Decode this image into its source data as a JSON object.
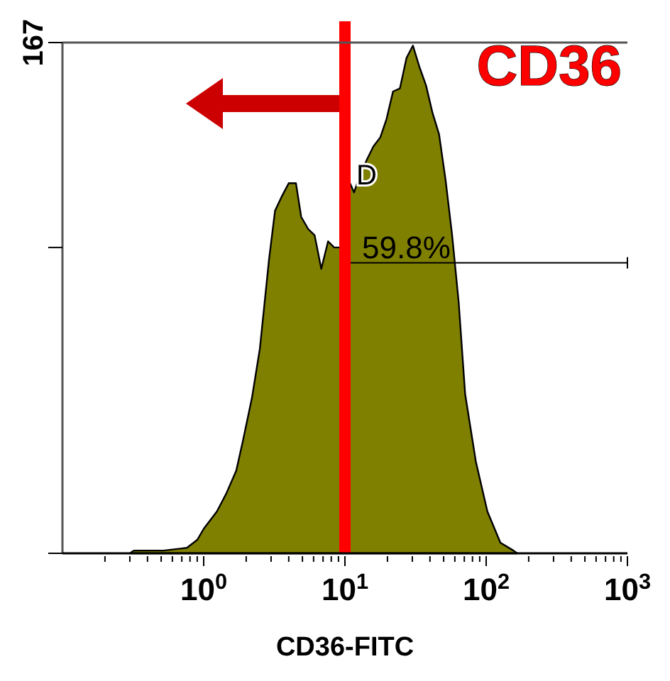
{
  "chart_data": {
    "type": "area",
    "xlabel": "CD36-FITC",
    "log": "x",
    "xlim": [
      0.1,
      1000
    ],
    "ylim": [
      0,
      167
    ],
    "xticks": [
      {
        "value": 0.2,
        "label": null
      },
      {
        "value": 0.3,
        "label": null
      },
      {
        "value": 0.4,
        "label": null
      },
      {
        "value": 0.5,
        "label": null
      },
      {
        "value": 0.6,
        "label": null
      },
      {
        "value": 0.7,
        "label": null
      },
      {
        "value": 0.8,
        "label": null
      },
      {
        "value": 0.9,
        "label": null
      },
      {
        "value": 1,
        "label": "10$^{0}$"
      },
      {
        "value": 2,
        "label": null
      },
      {
        "value": 3,
        "label": null
      },
      {
        "value": 4,
        "label": null
      },
      {
        "value": 5,
        "label": null
      },
      {
        "value": 6,
        "label": null
      },
      {
        "value": 7,
        "label": null
      },
      {
        "value": 8,
        "label": null
      },
      {
        "value": 9,
        "label": null
      },
      {
        "value": 10,
        "label": "10$^{1}$"
      },
      {
        "value": 20,
        "label": null
      },
      {
        "value": 30,
        "label": null
      },
      {
        "value": 40,
        "label": null
      },
      {
        "value": 50,
        "label": null
      },
      {
        "value": 60,
        "label": null
      },
      {
        "value": 70,
        "label": null
      },
      {
        "value": 80,
        "label": null
      },
      {
        "value": 90,
        "label": null
      },
      {
        "value": 100,
        "label": "10$^{2}$"
      },
      {
        "value": 200,
        "label": null
      },
      {
        "value": 300,
        "label": null
      },
      {
        "value": 400,
        "label": null
      },
      {
        "value": 500,
        "label": null
      },
      {
        "value": 600,
        "label": null
      },
      {
        "value": 700,
        "label": null
      },
      {
        "value": 800,
        "label": null
      },
      {
        "value": 900,
        "label": null
      },
      {
        "value": 1000,
        "label": "10$^{3}$"
      }
    ],
    "yticks": [
      {
        "value": 0,
        "label": null
      },
      {
        "value": 100,
        "label": null
      },
      167
    ],
    "grid": false,
    "series": [
      {
        "color": "#808000",
        "x": [
          0.3,
          0.32,
          0.52,
          0.76,
          0.9,
          1,
          1.24,
          1.44,
          1.7,
          1.9,
          2.2,
          2.5,
          2.7,
          2.9,
          3.2,
          3.6,
          4,
          4.5,
          4.9,
          5.5,
          6.1,
          6.8,
          7.6,
          8.4,
          9.4,
          10.4,
          11.6,
          12.9,
          14.4,
          15.9,
          17.8,
          19.7,
          21.9,
          24.5,
          27.3,
          30.3,
          33.7,
          37.5,
          41.7,
          46.4,
          51.6,
          57.4,
          63.9,
          71,
          84.5,
          102,
          126,
          156,
          166
        ],
        "values": [
          0,
          0.9,
          0.9,
          1.8,
          4.4,
          8,
          13.7,
          19.4,
          27,
          37,
          51,
          67,
          82,
          96,
          112,
          117,
          121,
          121,
          110,
          106,
          104,
          93,
          102,
          100,
          100,
          123,
          118,
          124,
          129,
          133,
          136,
          142,
          151,
          152,
          162,
          166,
          159,
          153,
          144,
          137,
          122,
          104,
          82,
          52,
          30,
          13.7,
          3.5,
          0.9,
          0
        ]
      }
    ],
    "ref_lines": [
      {
        "axis": "x",
        "value": 10,
        "color": "#ff0000"
      }
    ],
    "annotations": [
      "CD36",
      "D",
      {
        "text": "59.8%",
        "x": 10,
        "y": 95
      }
    ]
  }
}
